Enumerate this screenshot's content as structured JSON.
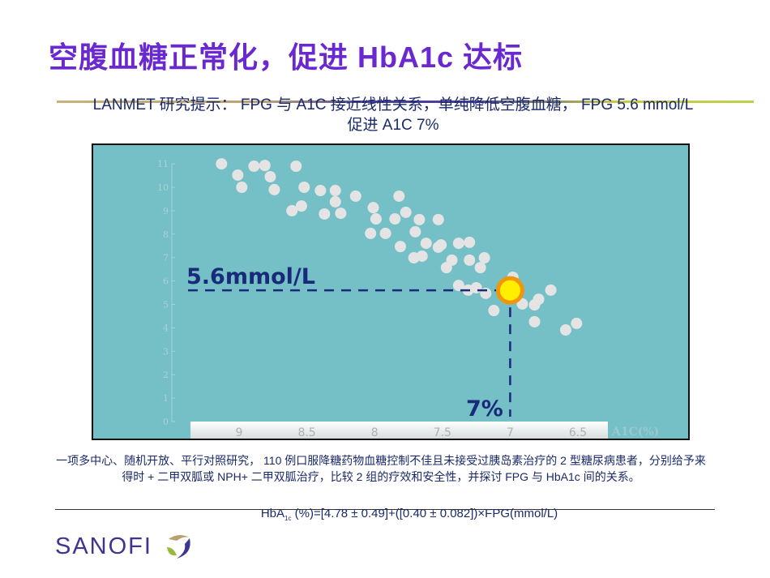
{
  "title": "空腹血糖正常化，促进 HbA1c 达标",
  "subtitle_line1": "LANMET 研究提示： FPG 与 A1C 接近线性关系，单纯降低空腹血糖， FPG 5.6 mmol/L",
  "subtitle_line2": "促进 A1C 7%",
  "chart_data": {
    "type": "scatter",
    "xlabel": "A1C(%)",
    "ylabel": "",
    "xlim": [
      9.5,
      6.2
    ],
    "x_reversed": true,
    "ylim": [
      0,
      11
    ],
    "xticks": [
      "9",
      "8.5",
      "8",
      "7.5",
      "7",
      "6.5"
    ],
    "yticks": [
      "0",
      "1",
      "2",
      "3",
      "4",
      "5",
      "6",
      "7",
      "8",
      "9",
      "10",
      "11"
    ],
    "grid": false,
    "point_color": "#e4e4e4",
    "points": [
      [
        9.13,
        11.0
      ],
      [
        9.01,
        10.52
      ],
      [
        8.98,
        10.0
      ],
      [
        8.89,
        10.9
      ],
      [
        8.81,
        10.93
      ],
      [
        8.77,
        10.45
      ],
      [
        8.74,
        9.9
      ],
      [
        8.58,
        10.9
      ],
      [
        8.52,
        10.0
      ],
      [
        8.61,
        9.0
      ],
      [
        8.54,
        9.2
      ],
      [
        8.4,
        9.86
      ],
      [
        8.29,
        9.86
      ],
      [
        8.37,
        8.86
      ],
      [
        8.29,
        9.38
      ],
      [
        8.25,
        8.89
      ],
      [
        8.14,
        9.62
      ],
      [
        8.01,
        9.13
      ],
      [
        8.03,
        8.03
      ],
      [
        7.99,
        8.65
      ],
      [
        7.92,
        8.03
      ],
      [
        7.82,
        9.62
      ],
      [
        7.85,
        8.65
      ],
      [
        7.77,
        8.93
      ],
      [
        7.81,
        7.47
      ],
      [
        7.7,
        8.1
      ],
      [
        7.67,
        8.62
      ],
      [
        7.62,
        7.61
      ],
      [
        7.65,
        7.06
      ],
      [
        7.71,
        6.99
      ],
      [
        7.53,
        7.44
      ],
      [
        7.53,
        8.62
      ],
      [
        7.51,
        7.54
      ],
      [
        7.47,
        6.57
      ],
      [
        7.38,
        7.61
      ],
      [
        7.43,
        6.89
      ],
      [
        7.3,
        7.65
      ],
      [
        7.3,
        6.89
      ],
      [
        7.19,
        6.99
      ],
      [
        7.22,
        6.57
      ],
      [
        7.38,
        5.81
      ],
      [
        7.25,
        5.71
      ],
      [
        7.31,
        5.61
      ],
      [
        7.18,
        5.47
      ],
      [
        7.12,
        4.74
      ],
      [
        6.98,
        6.16
      ],
      [
        6.91,
        5.02
      ],
      [
        6.82,
        4.98
      ],
      [
        6.79,
        5.22
      ],
      [
        6.7,
        5.61
      ],
      [
        6.82,
        4.26
      ],
      [
        6.59,
        3.91
      ],
      [
        6.51,
        4.19
      ]
    ],
    "highlight": {
      "x": 7.0,
      "y": 5.6,
      "fill": "#ffee00",
      "stroke": "#f0960a"
    },
    "guide_color": "#1a2a7a",
    "annotations": {
      "fpg_label": "5.6mmol/L",
      "a1c_label": "7%"
    }
  },
  "footnote": "一项多中心、随机开放、平行对照研究， 110 例口服降糖药物血糖控制不佳且未接受过胰岛素治疗的 2 型糖尿病患者，分别给予来得时 + 二甲双胍或 NPH+ 二甲双胍治疗，比较 2 组的疗效和安全性，并探讨 FPG 与 HbA1c 间的关系。",
  "formula": {
    "pre": "HbA",
    "sub": "1c",
    "post": " (%)=[4.78 ± 0.49]+([0.40 ± 0.082])×FPG(mmol/L)"
  },
  "logo": {
    "text": "SANOFI",
    "color": "#3d3590"
  }
}
